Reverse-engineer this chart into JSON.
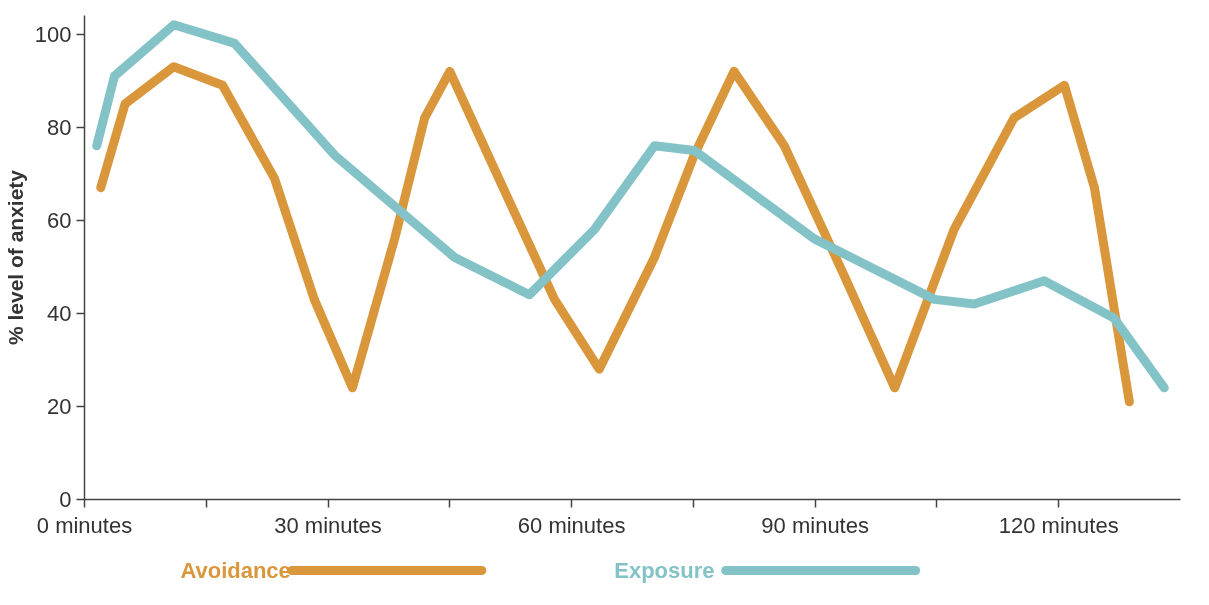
{
  "chart_data": {
    "type": "line",
    "ylabel": "% level of anxiety",
    "xlim": [
      0,
      135
    ],
    "ylim": [
      0,
      104
    ],
    "xticks": [
      {
        "value": 0,
        "label": "0 minutes"
      },
      {
        "value": 15,
        "label": null
      },
      {
        "value": 30,
        "label": "30 minutes"
      },
      {
        "value": 45,
        "label": null
      },
      {
        "value": 60,
        "label": "60 minutes"
      },
      {
        "value": 75,
        "label": null
      },
      {
        "value": 90,
        "label": "90 minutes"
      },
      {
        "value": 105,
        "label": null
      },
      {
        "value": 120,
        "label": "120 minutes"
      }
    ],
    "yticks": [
      0,
      20,
      40,
      60,
      80,
      100
    ],
    "grid": false,
    "legend": "bottom",
    "marker": "none",
    "line_style": "solid",
    "series": [
      {
        "name": "Avoidance",
        "color": "#d9963b",
        "x": [
          2,
          5,
          11,
          17,
          23.4,
          28.3,
          33,
          38.2,
          41.9,
          45,
          50.5,
          57.9,
          63.4,
          70.2,
          75.1,
          80,
          86.2,
          93.6,
          99.8,
          107.1,
          114.5,
          120.7,
          124.4,
          128.7
        ],
        "values": [
          67,
          85,
          93,
          89,
          69,
          43,
          24,
          56,
          82,
          92,
          71,
          43,
          28,
          52,
          74,
          92,
          76,
          48,
          24,
          58,
          82,
          89,
          67,
          21
        ]
      },
      {
        "name": "Exposure",
        "color": "#83c3c8",
        "x": [
          1.5,
          3.7,
          11,
          18.5,
          30.8,
          45.6,
          54.8,
          62.8,
          70.2,
          75.1,
          89.9,
          104.7,
          109.6,
          118.2,
          126.8,
          133
        ],
        "values": [
          76,
          91,
          102,
          98,
          74,
          52,
          44,
          58,
          76,
          75,
          56,
          43,
          42,
          47,
          39,
          24
        ]
      }
    ]
  }
}
